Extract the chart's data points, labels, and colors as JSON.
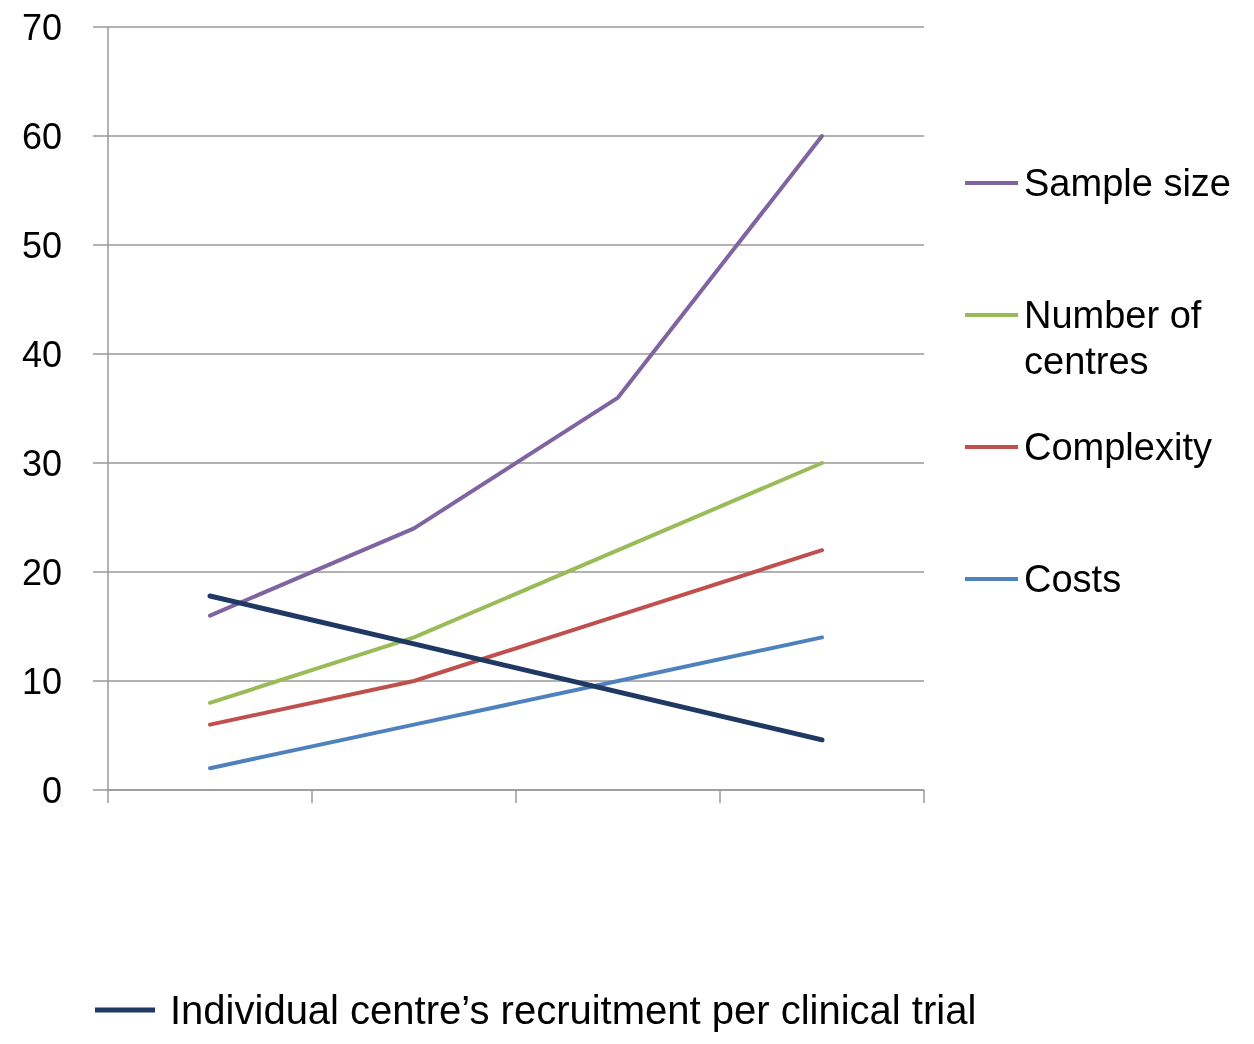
{
  "chart_data": {
    "type": "line",
    "categories": [
      null,
      null,
      null,
      null
    ],
    "ylim": [
      0,
      70
    ],
    "yticks": [
      0,
      10,
      20,
      30,
      40,
      50,
      60,
      70
    ],
    "grid": "y",
    "legend": "right",
    "marker": "none",
    "line_style": "solid",
    "series": [
      {
        "name": "Sample size",
        "color": "#8064a2",
        "values": [
          16,
          24,
          36,
          60
        ]
      },
      {
        "name": "Number of centres",
        "color": "#9bbb59",
        "values": [
          8,
          14,
          22,
          30
        ]
      },
      {
        "name": "Complexity",
        "color": "#c0504d",
        "values": [
          6,
          10,
          16,
          22
        ]
      },
      {
        "name": "Costs",
        "color": "#4f81bd",
        "values": [
          2,
          6,
          10,
          14
        ]
      },
      {
        "name": "Individual centre’s recruitment per clinical trial",
        "color": "#1f3864",
        "values": [
          17.8,
          13.4,
          9,
          4.6
        ]
      }
    ]
  }
}
